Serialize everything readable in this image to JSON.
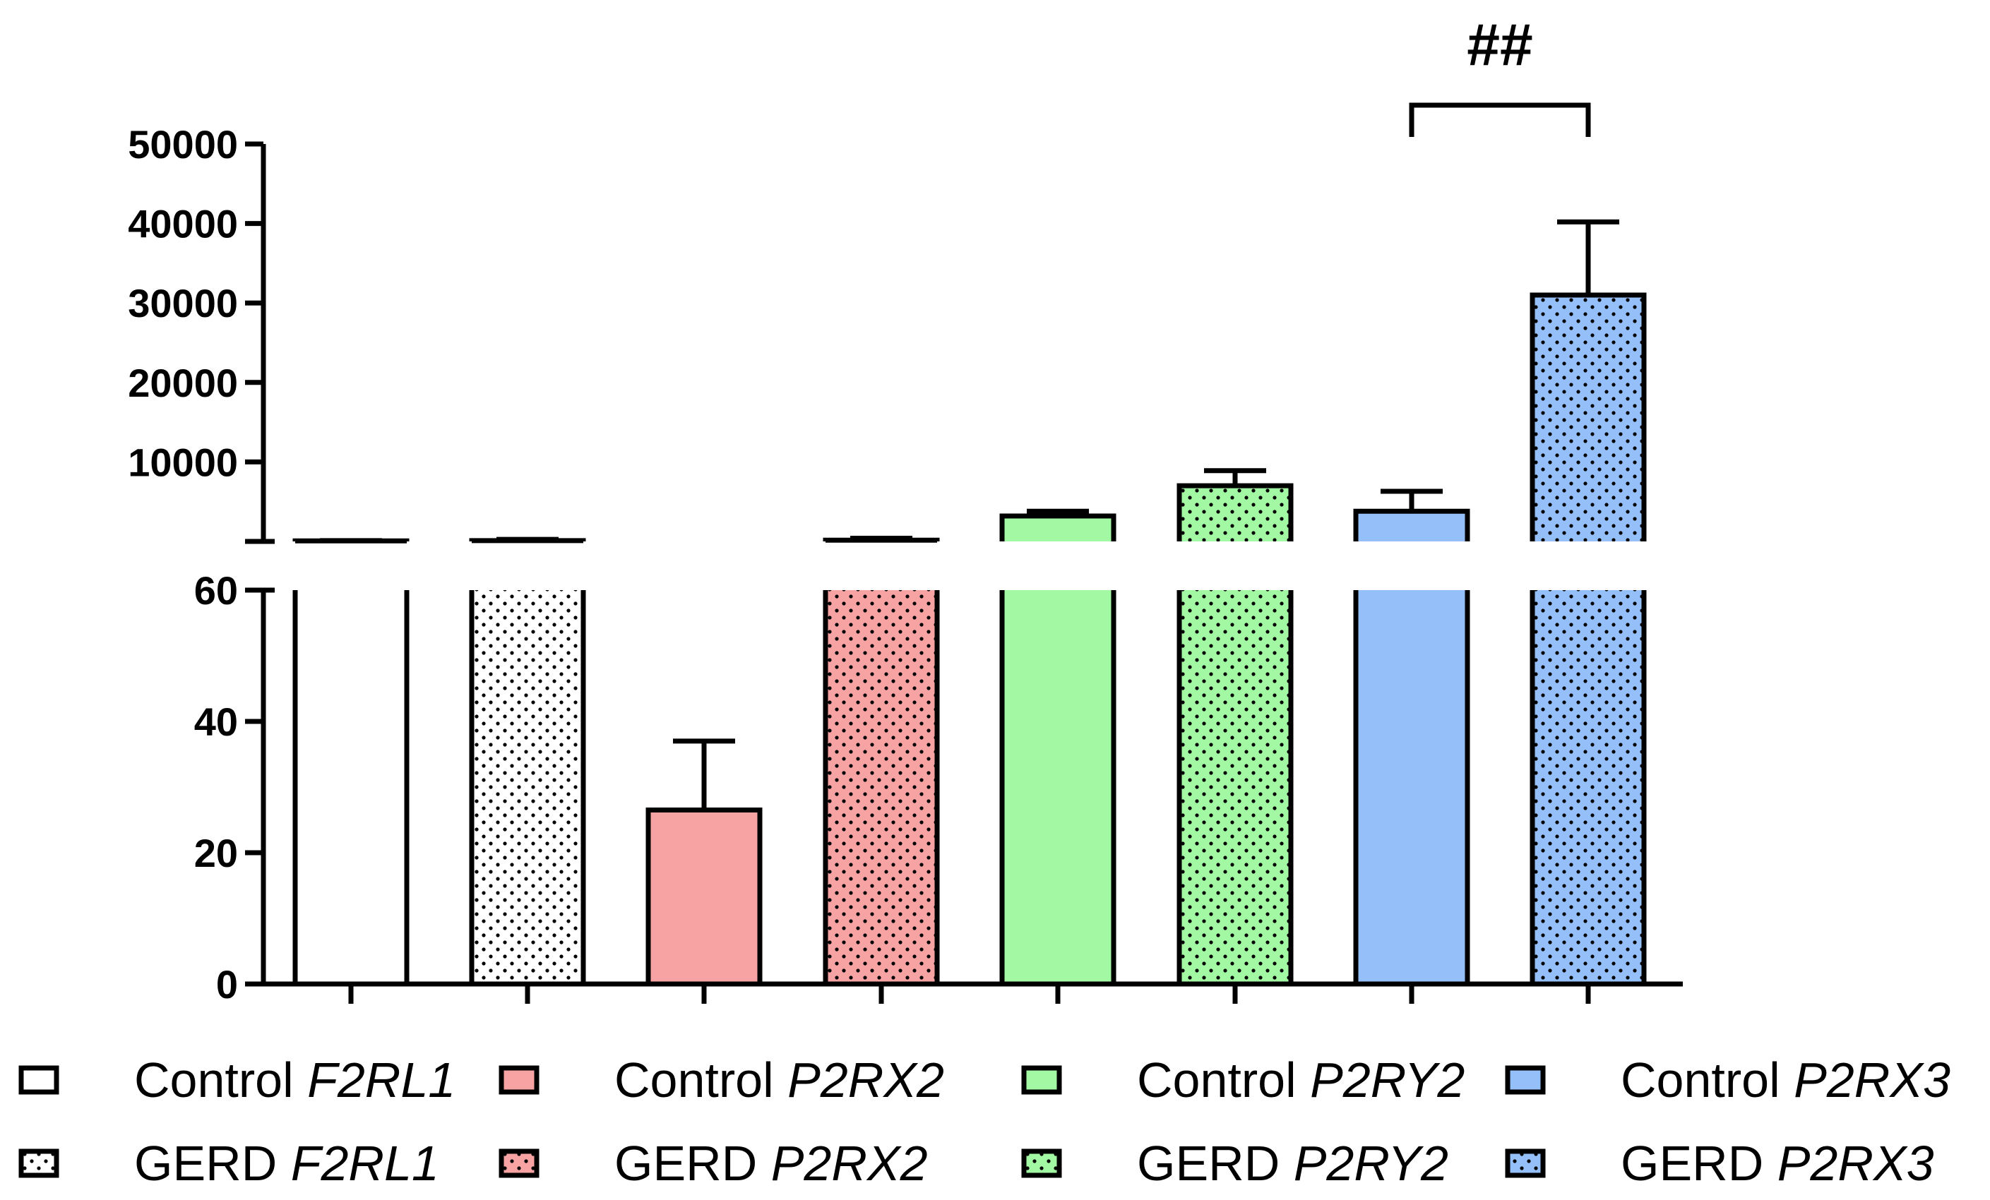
{
  "chart_data": {
    "type": "bar",
    "title": "",
    "xlabel": "",
    "ylabel": "",
    "axis_break": {
      "lower_range": [
        0,
        60
      ],
      "upper_range": [
        0,
        50000
      ]
    },
    "y_ticks_lower": [
      0,
      20,
      40,
      60
    ],
    "y_ticks_upper": [
      10000,
      20000,
      30000,
      40000,
      50000
    ],
    "tick_labels_lower": [
      "0",
      "20",
      "40",
      "60"
    ],
    "tick_labels_upper": [
      "10000",
      "20000",
      "30000",
      "40000",
      "50000"
    ],
    "series": [
      {
        "name": "Control F2RL1",
        "group": "Control",
        "gene": "F2RL1",
        "value": 70,
        "error": 30,
        "color": "#ffffff",
        "pattern": "none"
      },
      {
        "name": "GERD F2RL1",
        "group": "GERD",
        "gene": "F2RL1",
        "value": 100,
        "error": 150,
        "color": "#ffffff",
        "pattern": "dots"
      },
      {
        "name": "Control P2RX2",
        "group": "Control",
        "gene": "P2RX2",
        "value": 26.5,
        "error": 10.5,
        "color": "#f8a3a3",
        "pattern": "none"
      },
      {
        "name": "GERD P2RX2",
        "group": "GERD",
        "gene": "P2RX2",
        "value": 150,
        "error": 250,
        "color": "#f8a3a3",
        "pattern": "dots"
      },
      {
        "name": "Control P2RY2",
        "group": "Control",
        "gene": "P2RY2",
        "value": 3200,
        "error": 600,
        "color": "#a3f8a3",
        "pattern": "none"
      },
      {
        "name": "GERD P2RY2",
        "group": "GERD",
        "gene": "P2RY2",
        "value": 7000,
        "error": 1900,
        "color": "#a3f8a3",
        "pattern": "dots"
      },
      {
        "name": "Control P2RX3",
        "group": "Control",
        "gene": "P2RX3",
        "value": 3800,
        "error": 2500,
        "color": "#94bff8",
        "pattern": "none"
      },
      {
        "name": "GERD P2RX3",
        "group": "GERD",
        "gene": "P2RX3",
        "value": 31000,
        "error": 9200,
        "color": "#94bff8",
        "pattern": "dots"
      }
    ],
    "annotations": [
      {
        "text": "##",
        "between": [
          "Control P2RX3",
          "GERD P2RX3"
        ]
      }
    ],
    "legend": {
      "placement": "bottom",
      "entries": [
        {
          "group": "Control",
          "gene": "F2RL1"
        },
        {
          "group": "GERD",
          "gene": "F2RL1"
        },
        {
          "group": "Control",
          "gene": "P2RX2"
        },
        {
          "group": "GERD",
          "gene": "P2RX2"
        },
        {
          "group": "Control",
          "gene": "P2RY2"
        },
        {
          "group": "GERD",
          "gene": "P2RY2"
        },
        {
          "group": "Control",
          "gene": "P2RX3"
        },
        {
          "group": "GERD",
          "gene": "P2RX3"
        }
      ]
    }
  }
}
